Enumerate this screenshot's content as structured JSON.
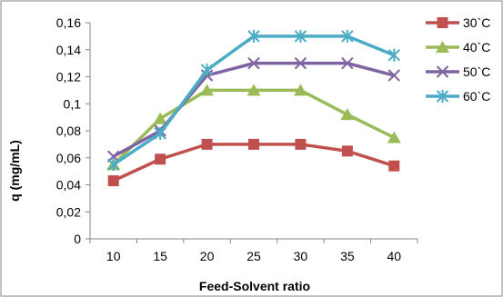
{
  "chart_data": {
    "type": "line",
    "title": "",
    "xlabel": "Feed-Solvent ratio",
    "ylabel": "q (mg/mL)",
    "x": [
      10,
      15,
      20,
      25,
      30,
      35,
      40
    ],
    "x_tick_labels": [
      "10",
      "15",
      "20",
      "25",
      "30",
      "35",
      "40"
    ],
    "ylim": [
      0,
      0.16
    ],
    "y_tick_labels": [
      "0",
      "0,02",
      "0,04",
      "0,06",
      "0,08",
      "0,1",
      "0,12",
      "0,14",
      "0,16"
    ],
    "grid": false,
    "legend_position": "top-right",
    "series": [
      {
        "name": "30`C",
        "color": "#C0504D",
        "marker": "square",
        "values": [
          0.043,
          0.059,
          0.07,
          0.07,
          0.07,
          0.065,
          0.054
        ]
      },
      {
        "name": "40`C",
        "color": "#9BBB59",
        "marker": "triangle",
        "values": [
          0.055,
          0.089,
          0.11,
          0.11,
          0.11,
          0.092,
          0.075
        ]
      },
      {
        "name": "50`C",
        "color": "#8064A2",
        "marker": "x",
        "values": [
          0.061,
          0.08,
          0.121,
          0.13,
          0.13,
          0.13,
          0.121
        ]
      },
      {
        "name": "60`C",
        "color": "#4BACC6",
        "marker": "star",
        "values": [
          0.055,
          0.078,
          0.125,
          0.15,
          0.15,
          0.15,
          0.136
        ]
      }
    ]
  }
}
